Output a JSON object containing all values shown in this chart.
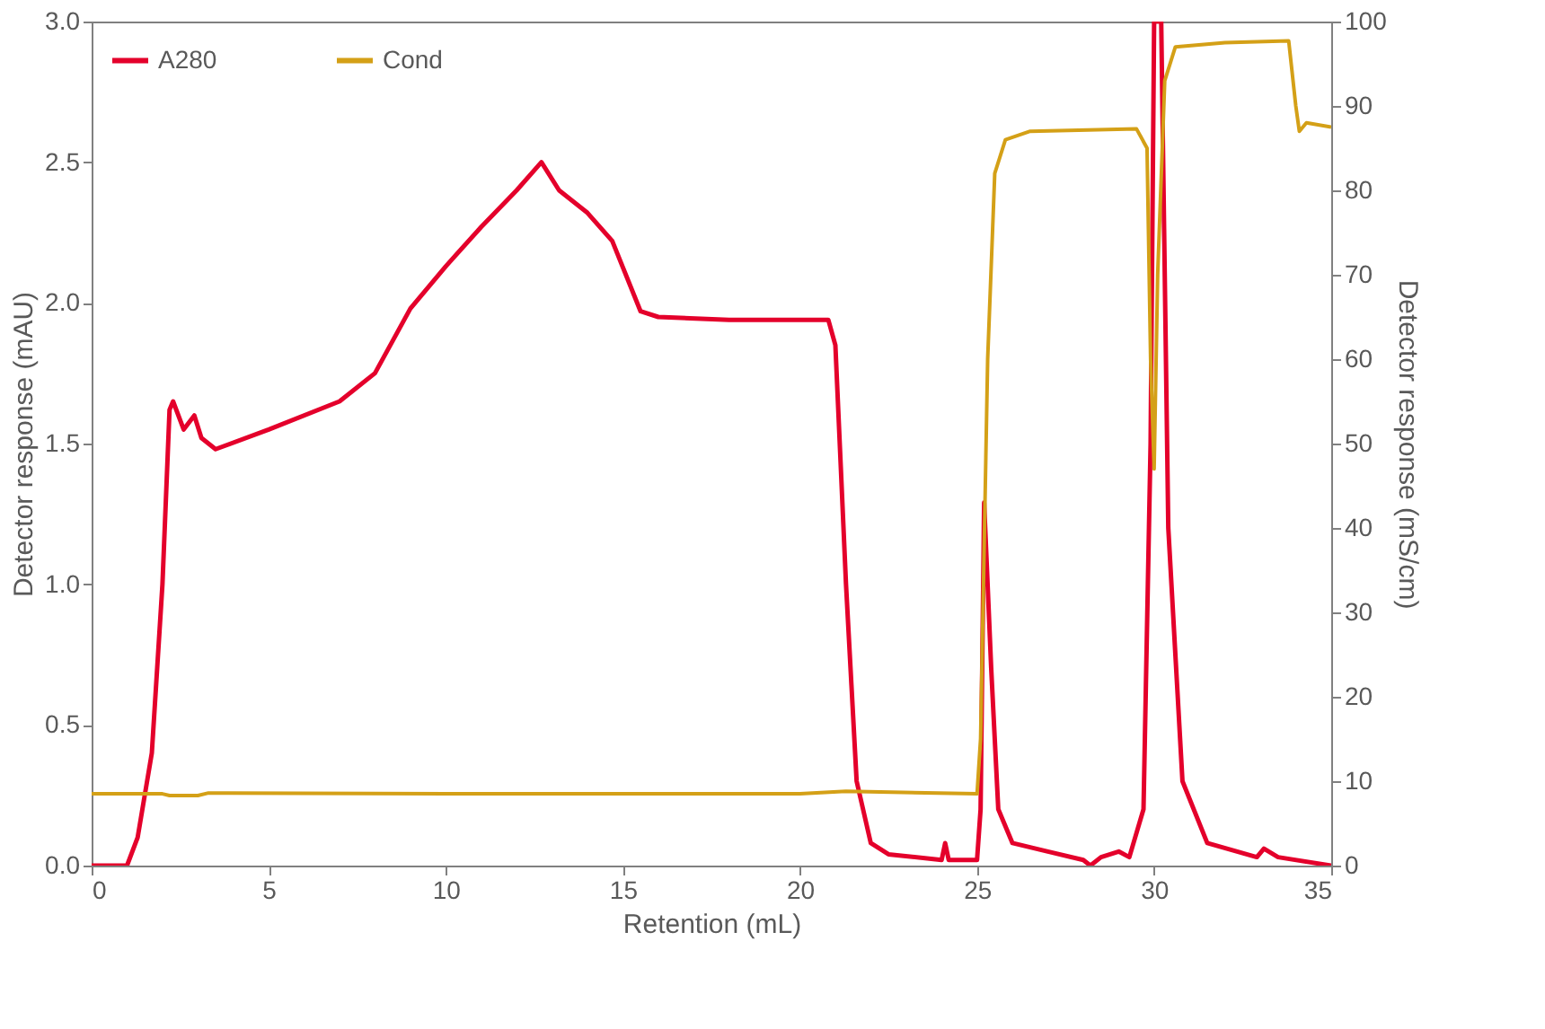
{
  "chart_data": {
    "type": "line",
    "xlabel": "Retention (mL)",
    "ylabel": "Detector response (mAU)",
    "y2label": "Detector response (mS/cm)",
    "xlim": [
      0,
      35
    ],
    "xticks": [
      0,
      5,
      10,
      15,
      20,
      25,
      30,
      35
    ],
    "ylim": [
      0,
      3.0
    ],
    "yticks": [
      {
        "value": 0,
        "label": "0.0"
      },
      0.5,
      {
        "value": 1,
        "label": "1.0"
      },
      1.5,
      {
        "value": 2,
        "label": "2.0"
      },
      2.5,
      {
        "value": 3,
        "label": "3.0"
      }
    ],
    "y2lim": [
      0,
      100
    ],
    "y2ticks": [
      0,
      10,
      20,
      30,
      40,
      50,
      60,
      70,
      80,
      90,
      100
    ],
    "grid": false,
    "legend": "top left",
    "marker": "none",
    "line_style": "solid",
    "series": [
      {
        "name": "A280",
        "color": "#e4002b",
        "x": [
          0,
          1.0,
          1.3,
          1.7,
          2.0,
          2.2,
          2.3,
          2.6,
          2.9,
          3.1,
          3.5,
          5,
          7,
          8,
          9,
          10,
          11,
          12,
          12.7,
          13.2,
          14,
          14.7,
          15.5,
          16,
          18,
          20.8,
          21.0,
          21.3,
          21.6,
          22,
          22.5,
          24,
          24.1,
          24.2,
          25,
          25.1,
          25.2,
          25.4,
          25.6,
          26,
          27,
          28,
          28.2,
          28.5,
          29,
          29.3,
          29.7,
          29.9,
          30.0,
          30.2,
          30.4,
          30.8,
          31.5,
          32.9,
          33.1,
          33.5,
          35
        ],
        "values": [
          0,
          0,
          0.1,
          0.4,
          1.0,
          1.62,
          1.65,
          1.55,
          1.6,
          1.52,
          1.48,
          1.55,
          1.65,
          1.75,
          1.98,
          2.13,
          2.27,
          2.4,
          2.5,
          2.4,
          2.32,
          2.22,
          1.97,
          1.95,
          1.94,
          1.94,
          1.85,
          1.0,
          0.3,
          0.08,
          0.04,
          0.02,
          0.08,
          0.02,
          0.02,
          0.2,
          1.29,
          0.7,
          0.2,
          0.08,
          0.05,
          0.02,
          0.0,
          0.03,
          0.05,
          0.03,
          0.2,
          1.5,
          3.0,
          3.0,
          1.2,
          0.3,
          0.08,
          0.03,
          0.06,
          0.03,
          0.0
        ]
      },
      {
        "name": "Cond",
        "color": "#d4a017",
        "axis": "y2",
        "x": [
          0,
          2,
          2.2,
          3,
          3.3,
          10,
          20,
          21.3,
          25,
          25.1,
          25.3,
          25.5,
          25.8,
          26.5,
          29.5,
          29.8,
          29.9,
          30.0,
          30.1,
          30.3,
          30.6,
          32,
          33.8,
          34,
          34.1,
          34.3,
          35
        ],
        "values": [
          8.5,
          8.5,
          8.3,
          8.3,
          8.6,
          8.5,
          8.5,
          8.8,
          8.5,
          15,
          60,
          82,
          86,
          87,
          87.3,
          85,
          60,
          47,
          70,
          93,
          97,
          97.5,
          97.7,
          90,
          87,
          88,
          87.5
        ]
      }
    ]
  }
}
